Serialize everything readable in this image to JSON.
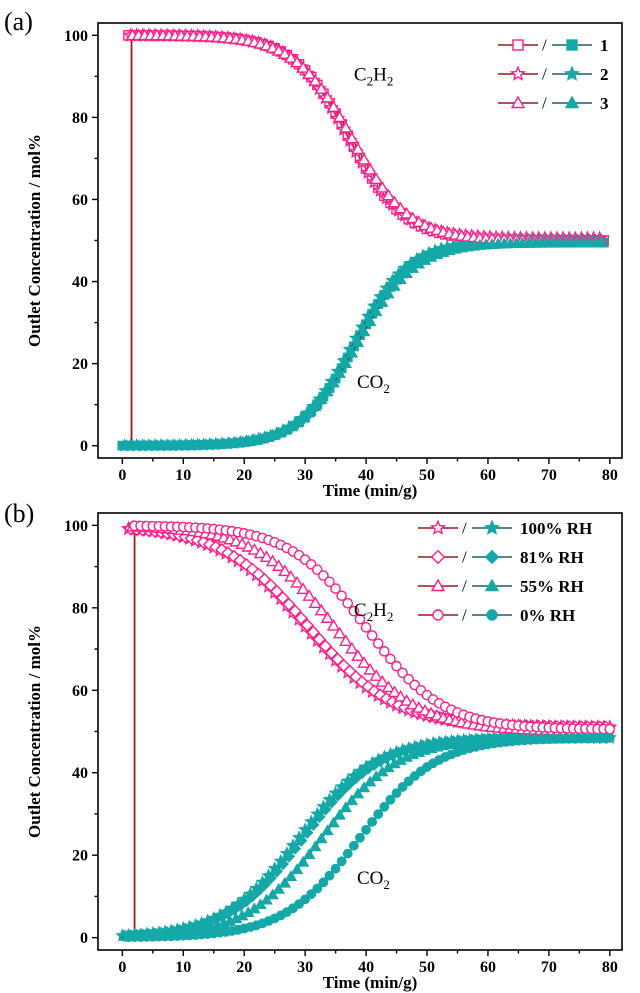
{
  "colors": {
    "c2h2_marker": "#ff1f8a",
    "c2h2_line": "#a01818",
    "co2_marker": "#14a8a8",
    "co2_line": "#1e5f60",
    "feed_line": "#b01010"
  },
  "chart_data": [
    {
      "type": "line",
      "panel": "(a)",
      "xlabel": "Time (min/g)",
      "ylabel": "Outlet Concentration / mol%",
      "xlim": [
        -4,
        82
      ],
      "ylim": [
        -3,
        103
      ],
      "xticks": [
        0,
        10,
        20,
        30,
        40,
        50,
        60,
        70,
        80
      ],
      "yticks": [
        0,
        20,
        40,
        60,
        80,
        100
      ],
      "feed_step_time": 1.5,
      "annotations": [
        {
          "label_main": "C",
          "sub1": "2",
          "mid": "H",
          "sub2": "2",
          "x": 38,
          "y": 89
        },
        {
          "label_main": "CO",
          "sub1": "2",
          "mid": "",
          "sub2": "",
          "x": 38.5,
          "y": 14
        }
      ],
      "legend": [
        {
          "label": "1",
          "open_marker": "square",
          "filled_marker": "square"
        },
        {
          "label": "2",
          "open_marker": "star",
          "filled_marker": "star"
        },
        {
          "label": "3",
          "open_marker": "triangle",
          "filled_marker": "triangle"
        }
      ],
      "series": [
        {
          "name": "1",
          "marker": "square",
          "c2h2": {
            "t0": 37.2,
            "k": 0.22,
            "plateau": 100,
            "final": 50,
            "start": 1,
            "end": 79
          },
          "co2": {
            "t0": 38.2,
            "k": 0.22,
            "final": 49.5,
            "start": 0,
            "end": 79
          }
        },
        {
          "name": "2",
          "marker": "star",
          "c2h2": {
            "t0": 37.0,
            "k": 0.22,
            "plateau": 100,
            "final": 50.5,
            "start": 1,
            "end": 79
          },
          "co2": {
            "t0": 37.9,
            "k": 0.22,
            "final": 50,
            "start": 0,
            "end": 79
          }
        },
        {
          "name": "3",
          "marker": "triangle",
          "c2h2": {
            "t0": 37.6,
            "k": 0.21,
            "plateau": 100,
            "final": 50,
            "start": 1,
            "end": 79
          },
          "co2": {
            "t0": 38.5,
            "k": 0.21,
            "final": 49.5,
            "start": 0,
            "end": 79
          }
        }
      ]
    },
    {
      "type": "line",
      "panel": "(b)",
      "xlabel": "Time (min/g)",
      "ylabel": "Outlet Concentration / mol%",
      "xlim": [
        -4,
        82
      ],
      "ylim": [
        -3,
        103
      ],
      "xticks": [
        0,
        10,
        20,
        30,
        40,
        50,
        60,
        70,
        80
      ],
      "yticks": [
        0,
        20,
        40,
        60,
        80,
        100
      ],
      "feed_step_time": 2,
      "annotations": [
        {
          "label_main": "C",
          "sub1": "2",
          "mid": "H",
          "sub2": "2",
          "x": 38,
          "y": 78
        },
        {
          "label_main": "CO",
          "sub1": "2",
          "mid": "",
          "sub2": "",
          "x": 38.5,
          "y": 13
        }
      ],
      "legend": [
        {
          "label": "100% RH",
          "open_marker": "star",
          "filled_marker": "star"
        },
        {
          "label": "81% RH",
          "open_marker": "diamond",
          "filled_marker": "diamond"
        },
        {
          "label": "55% RH",
          "open_marker": "triangle",
          "filled_marker": "triangle"
        },
        {
          "label": "0% RH",
          "open_marker": "circle",
          "filled_marker": "circle"
        }
      ],
      "series": [
        {
          "name": "100% RH",
          "marker": "star",
          "c2h2": {
            "t0": 30.0,
            "k": 0.14,
            "plateau": 100,
            "final": 51,
            "start": 1,
            "end": 80
          },
          "co2": {
            "t0": 29.0,
            "k": 0.16,
            "final": 48.5,
            "start": 0,
            "end": 80
          }
        },
        {
          "name": "81% RH",
          "marker": "diamond",
          "c2h2": {
            "t0": 30.5,
            "k": 0.14,
            "plateau": 100,
            "final": 51,
            "start": 1,
            "end": 80
          },
          "co2": {
            "t0": 29.7,
            "k": 0.16,
            "final": 48.5,
            "start": 0,
            "end": 80
          }
        },
        {
          "name": "55% RH",
          "marker": "triangle",
          "c2h2": {
            "t0": 35.0,
            "k": 0.15,
            "plateau": 100,
            "final": 50,
            "start": 1,
            "end": 80
          },
          "co2": {
            "t0": 32.8,
            "k": 0.16,
            "final": 48.5,
            "start": 0,
            "end": 80
          }
        },
        {
          "name": "0% RH",
          "marker": "circle",
          "c2h2": {
            "t0": 40.0,
            "k": 0.16,
            "plateau": 100,
            "final": 50.5,
            "start": 1,
            "end": 80
          },
          "co2": {
            "t0": 39.0,
            "k": 0.16,
            "final": 48.5,
            "start": 0,
            "end": 80
          }
        }
      ]
    }
  ]
}
